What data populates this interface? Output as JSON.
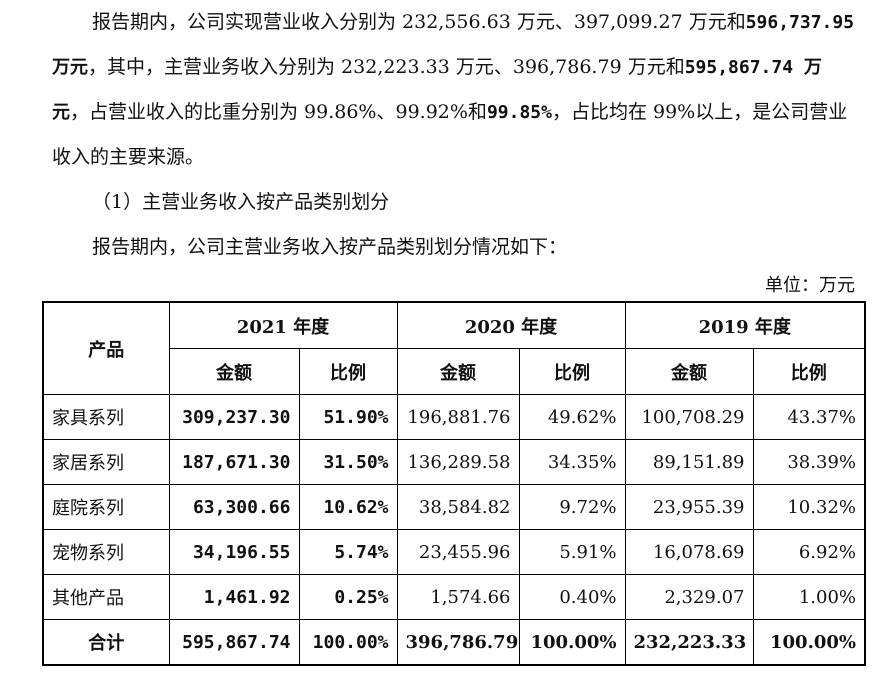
{
  "paragraph1": {
    "t1": "报告期内，公司实现营业收入分别为 232,556.63 万元、397,099.27 万元和",
    "b1": "596,737.95 万元",
    "t2": "，其中，主营业务收入分别为 232,223.33 万元、396,786.79 万元和",
    "b2": "595,867.74 万元",
    "t3": "，占营业收入的比重分别为 99.86%、99.92%和",
    "b3": "99.85%",
    "t4": "，占比均在 99%以上，是公司营业收入的主要来源。"
  },
  "heading": "（1）主营业务收入按产品类别划分",
  "intro": "报告期内，公司主营业务收入按产品类别划分情况如下：",
  "unit": "单位：万元",
  "table": {
    "product_header": "产品",
    "years": [
      "2021 年度",
      "2020 年度",
      "2019 年度"
    ],
    "amount_label": "金额",
    "ratio_label": "比例",
    "rows": [
      {
        "name": "家具系列",
        "a2021": "309,237.30",
        "r2021": "51.90%",
        "a2020": "196,881.76",
        "r2020": "49.62%",
        "a2019": "100,708.29",
        "r2019": "43.37%"
      },
      {
        "name": "家居系列",
        "a2021": "187,671.30",
        "r2021": "31.50%",
        "a2020": "136,289.58",
        "r2020": "34.35%",
        "a2019": "89,151.89",
        "r2019": "38.39%"
      },
      {
        "name": "庭院系列",
        "a2021": "63,300.66",
        "r2021": "10.62%",
        "a2020": "38,584.82",
        "r2020": "9.72%",
        "a2019": "23,955.39",
        "r2019": "10.32%"
      },
      {
        "name": "宠物系列",
        "a2021": "34,196.55",
        "r2021": "5.74%",
        "a2020": "23,455.96",
        "r2020": "5.91%",
        "a2019": "16,078.69",
        "r2019": "6.92%"
      },
      {
        "name": "其他产品",
        "a2021": "1,461.92",
        "r2021": "0.25%",
        "a2020": "1,574.66",
        "r2020": "0.40%",
        "a2019": "2,329.07",
        "r2019": "1.00%"
      }
    ],
    "total": {
      "name": "合计",
      "a2021": "595,867.74",
      "r2021": "100.00%",
      "a2020": "396,786.79",
      "r2020": "100.00%",
      "a2019": "232,223.33",
      "r2019": "100.00%"
    }
  }
}
